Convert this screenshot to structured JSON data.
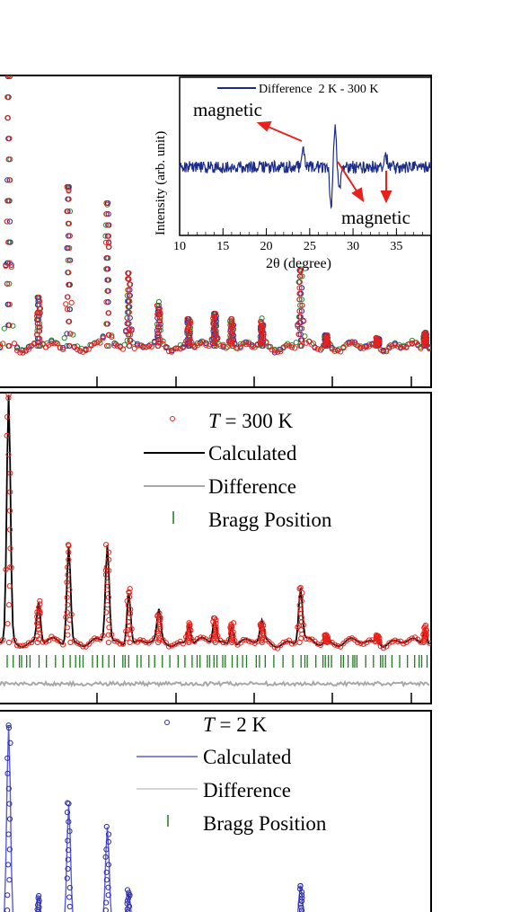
{
  "chart_data": [
    {
      "type": "scatter",
      "panel": "top-overlay",
      "series": [
        {
          "name": "",
          "marker": "open-circle",
          "color": "#e8221b"
        },
        {
          "name": "",
          "marker": "open-circle",
          "color": "#2a8a2a"
        },
        {
          "name": "",
          "marker": "open-circle",
          "color": "#2b2ba8"
        }
      ],
      "peaks": [
        {
          "x": 0.02,
          "h": 1.0
        },
        {
          "x": 0.09,
          "h": 0.18
        },
        {
          "x": 0.16,
          "h": 0.59
        },
        {
          "x": 0.25,
          "h": 0.53
        },
        {
          "x": 0.3,
          "h": 0.27
        },
        {
          "x": 0.37,
          "h": 0.15
        },
        {
          "x": 0.44,
          "h": 0.1
        },
        {
          "x": 0.5,
          "h": 0.12
        },
        {
          "x": 0.54,
          "h": 0.1
        },
        {
          "x": 0.61,
          "h": 0.09
        },
        {
          "x": 0.7,
          "h": 0.28
        },
        {
          "x": 0.76,
          "h": 0.04
        },
        {
          "x": 0.88,
          "h": 0.03
        },
        {
          "x": 0.99,
          "h": 0.05
        }
      ]
    },
    {
      "type": "line",
      "panel": "inset",
      "legend": [
        {
          "name": "Difference  2 K - 300 K",
          "color": "#1b2b8a"
        }
      ],
      "xlabel": "2θ (degree)",
      "ylabel": "Intensity (arb. unit)",
      "xlim": [
        10,
        39
      ],
      "xticks": [
        10,
        15,
        20,
        25,
        30,
        35
      ],
      "features": [
        {
          "x": 24.2,
          "y": 0.8
        },
        {
          "x": 27.5,
          "y": -1.6
        },
        {
          "x": 27.9,
          "y": 1.8
        },
        {
          "x": 28.4,
          "y": -0.9
        },
        {
          "x": 33.8,
          "y": 0.4
        }
      ],
      "annotations": [
        {
          "text": "magnetic",
          "x": 24.2
        },
        {
          "text": "magnetic",
          "x": 33.8
        }
      ]
    },
    {
      "type": "line",
      "panel": "middle",
      "legend": [
        {
          "prefix": "T",
          "name": " = 300 K",
          "color": "#e8221b",
          "marker": "open-circle"
        },
        {
          "name": "Calculated",
          "color": "#000000"
        },
        {
          "name": "Difference",
          "color": "#a8a8a8"
        },
        {
          "name": "Bragg Position",
          "color": "#1e7a1e",
          "marker": "tick"
        }
      ],
      "peaks": [
        {
          "x": 0.02,
          "h": 1.0
        },
        {
          "x": 0.09,
          "h": 0.17
        },
        {
          "x": 0.16,
          "h": 0.4
        },
        {
          "x": 0.25,
          "h": 0.4
        },
        {
          "x": 0.3,
          "h": 0.22
        },
        {
          "x": 0.37,
          "h": 0.12
        },
        {
          "x": 0.44,
          "h": 0.08
        },
        {
          "x": 0.5,
          "h": 0.1
        },
        {
          "x": 0.54,
          "h": 0.08
        },
        {
          "x": 0.61,
          "h": 0.08
        },
        {
          "x": 0.7,
          "h": 0.22
        },
        {
          "x": 0.76,
          "h": 0.03
        },
        {
          "x": 0.88,
          "h": 0.03
        },
        {
          "x": 0.99,
          "h": 0.07
        }
      ]
    },
    {
      "type": "line",
      "panel": "bottom",
      "legend": [
        {
          "prefix": "T",
          "name": " = 2 K",
          "color": "#2b2ba8",
          "marker": "open-circle"
        },
        {
          "name": "Calculated",
          "color": "#5a5ae0"
        },
        {
          "name": "Difference",
          "color": "#c8c8c8"
        },
        {
          "name": "Bragg Position",
          "color": "#1e7a1e",
          "marker": "tick"
        }
      ],
      "peaks": [
        {
          "x": 0.02,
          "h": 1.0
        },
        {
          "x": 0.09,
          "h": 0.15
        },
        {
          "x": 0.16,
          "h": 0.62
        },
        {
          "x": 0.25,
          "h": 0.5
        },
        {
          "x": 0.3,
          "h": 0.18
        },
        {
          "x": 0.7,
          "h": 0.2
        }
      ]
    }
  ]
}
